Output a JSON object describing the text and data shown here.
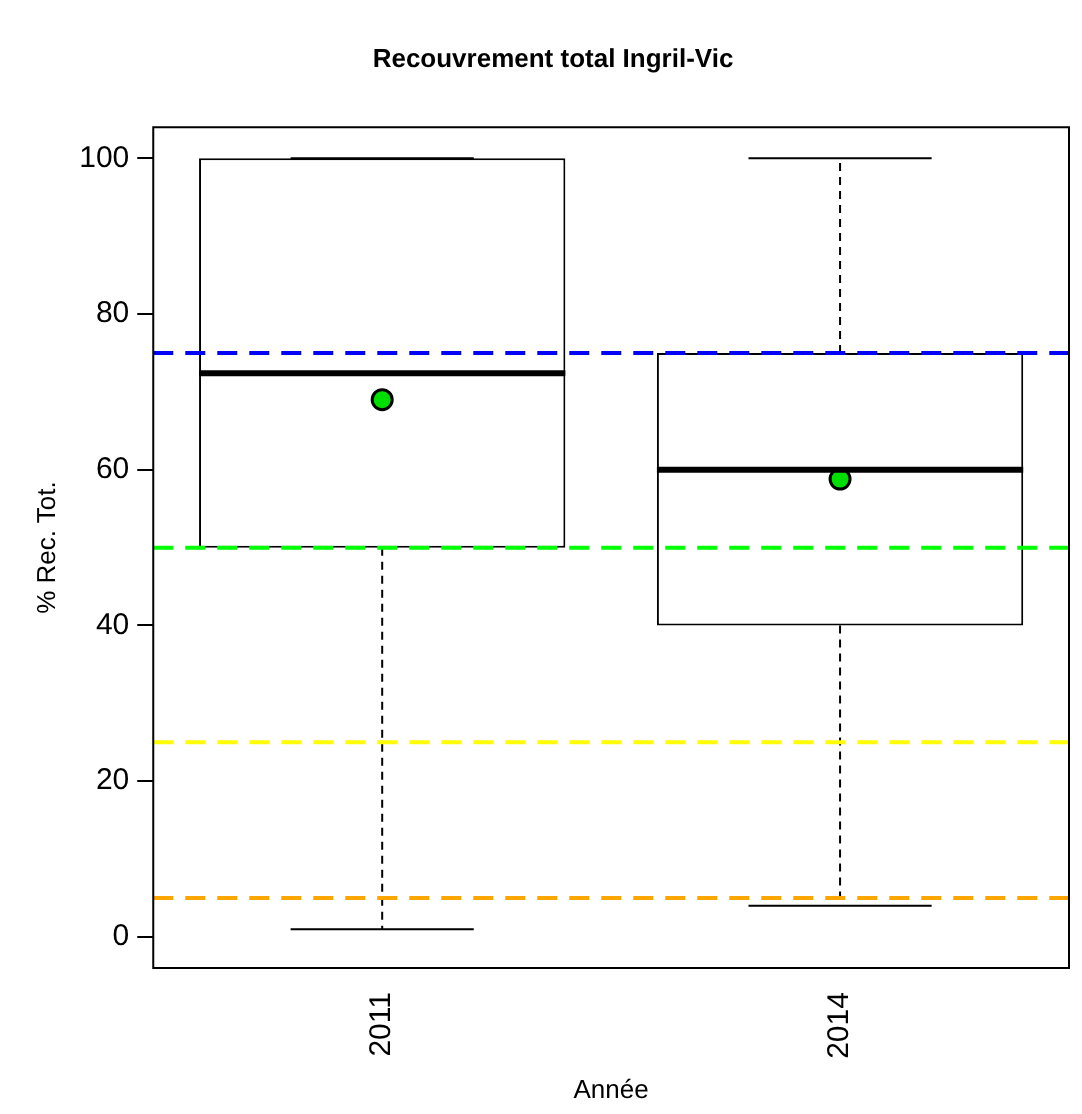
{
  "chart_data": {
    "type": "box",
    "title": "Recouvrement total Ingril-Vic",
    "xlabel": "Année",
    "ylabel": "% Rec. Tot.",
    "categories": [
      "2011",
      "2014"
    ],
    "boxes": [
      {
        "low": 1,
        "q1": 50,
        "median": 72.4,
        "q3": 100,
        "high": 100,
        "mean": 69
      },
      {
        "low": 4,
        "q1": 40,
        "median": 60,
        "q3": 75,
        "high": 100,
        "mean": 58.8
      }
    ],
    "ylim": [
      -4,
      104
    ],
    "yticks": [
      0,
      20,
      40,
      60,
      80,
      100
    ],
    "grid": false,
    "legend": false,
    "ref_lines": [
      {
        "axis": "y",
        "value": 75,
        "color": "#0000ff",
        "line_style": "dashed"
      },
      {
        "axis": "y",
        "value": 50,
        "color": "#00ff00",
        "line_style": "dashed"
      },
      {
        "axis": "y",
        "value": 25,
        "color": "#ffff00",
        "line_style": "dashed"
      },
      {
        "axis": "y",
        "value": 5,
        "color": "#ffa500",
        "line_style": "dashed"
      }
    ]
  }
}
